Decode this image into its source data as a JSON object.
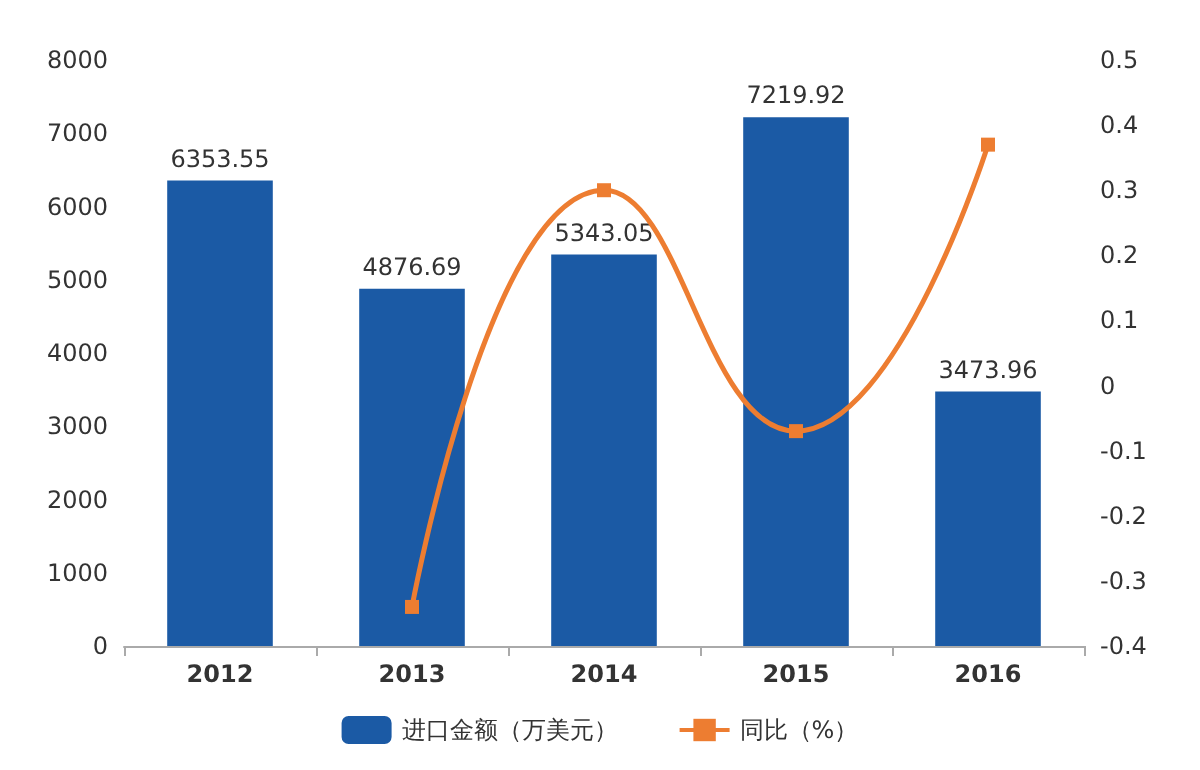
{
  "chart_data": {
    "type": "bar",
    "categories": [
      "2012",
      "2013",
      "2014",
      "2015",
      "2016"
    ],
    "series": [
      {
        "name": "进口金额（万美元）",
        "color": "#1b5aa5",
        "values": [
          6353.55,
          4876.69,
          5343.05,
          7219.92,
          3473.96
        ],
        "data_labels": true
      },
      {
        "name": "同比（%）",
        "type": "line",
        "axis": "y2",
        "color": "#ed7d31",
        "values": [
          null,
          -0.34,
          0.3,
          -0.07,
          0.37
        ],
        "marker": "square"
      }
    ],
    "ylim": [
      0,
      8000
    ],
    "yticks": [
      0,
      1000,
      2000,
      3000,
      4000,
      5000,
      6000,
      7000,
      8000
    ],
    "y2lim": [
      -0.4,
      0.5
    ],
    "y2ticks": [
      -0.4,
      -0.3,
      -0.2,
      -0.1,
      0,
      0.1,
      0.2,
      0.3,
      0.4,
      0.5
    ],
    "grid": false,
    "legend": "bottom"
  }
}
